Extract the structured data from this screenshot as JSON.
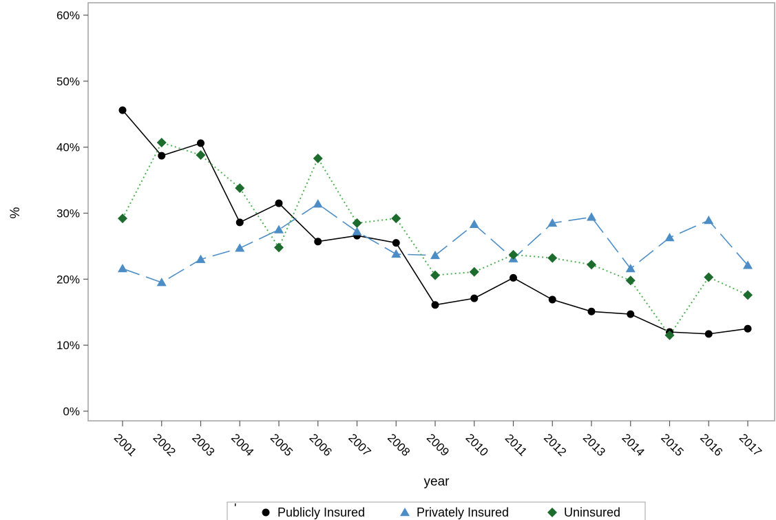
{
  "chart_data": {
    "type": "line",
    "xlabel": "year",
    "ylabel": "%",
    "ylim": [
      0,
      60
    ],
    "yticks": [
      "0%",
      "10%",
      "20%",
      "30%",
      "40%",
      "50%",
      "60%"
    ],
    "categories": [
      "2001",
      "2002",
      "2003",
      "2004",
      "2005",
      "2006",
      "2007",
      "2008",
      "2009",
      "2010",
      "2011",
      "2012",
      "2013",
      "2014",
      "2015",
      "2016",
      "2017"
    ],
    "series": [
      {
        "name": "Publicly Insured",
        "color": "#000000",
        "marker": "circle",
        "line": "solid",
        "values": [
          45.6,
          38.7,
          40.6,
          28.6,
          31.5,
          25.7,
          26.6,
          25.5,
          16.1,
          17.1,
          20.2,
          16.9,
          15.1,
          14.7,
          12.0,
          11.7,
          12.5
        ]
      },
      {
        "name": "Privately Insured",
        "color": "#4d8dc6",
        "marker": "triangle",
        "line": "longdash",
        "values": [
          21.6,
          19.5,
          23.0,
          24.7,
          27.5,
          31.4,
          27.2,
          23.8,
          23.6,
          28.3,
          23.1,
          28.5,
          29.4,
          21.6,
          26.3,
          28.9,
          22.1
        ]
      },
      {
        "name": "Uninsured",
        "color": "#1e6b2e",
        "marker": "diamond",
        "line": "dotted",
        "lineColor": "#4caf50",
        "values": [
          29.2,
          40.7,
          38.8,
          33.8,
          24.8,
          38.3,
          28.5,
          29.2,
          20.6,
          21.1,
          23.7,
          23.2,
          22.2,
          19.8,
          11.5,
          20.3,
          17.6
        ]
      }
    ],
    "legend": {
      "position": "bottom",
      "marker_char": "'"
    },
    "grid": false
  }
}
